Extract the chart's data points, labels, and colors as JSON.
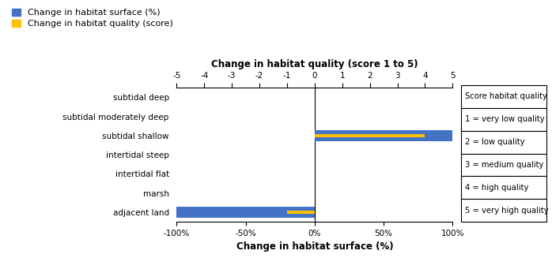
{
  "categories": [
    "subtidal deep",
    "subtidal moderately deep",
    "subtidal shallow",
    "intertidal steep",
    "intertidal flat",
    "marsh",
    "adjacent land"
  ],
  "surface_values": [
    0,
    0,
    100,
    0,
    0,
    0,
    -100
  ],
  "quality_values": [
    0,
    0,
    4,
    0,
    0,
    0,
    -1
  ],
  "bar_color_surface": "#4472C4",
  "bar_color_quality": "#FFC000",
  "surface_xlim": [
    -100,
    100
  ],
  "quality_xlim": [
    -5,
    5
  ],
  "bottom_xlabel": "Change in habitat surface (%)",
  "top_xlabel": "Change in habitat quality (score 1 to 5)",
  "surface_xticks": [
    -100,
    -50,
    0,
    50,
    100
  ],
  "surface_xticklabels": [
    "-100%",
    "-50%",
    "0%",
    "50%",
    "100%"
  ],
  "quality_xticks": [
    -5,
    -4,
    -3,
    -2,
    -1,
    0,
    1,
    2,
    3,
    4,
    5
  ],
  "quality_xticklabels": [
    "-5",
    "-4",
    "-3",
    "-2",
    "-1",
    "0",
    "1",
    "2",
    "3",
    "4",
    "5"
  ],
  "legend_label_surface": "Change in habitat surface (%)",
  "legend_label_quality": "Change in habitat quality (score)",
  "bar_height": 0.55,
  "score_box_title": "Score habitat quality",
  "score_box_entries": [
    "1 = very low quality",
    "2 = low quality",
    "3 = medium quality",
    "4 = high quality",
    "5 = very high quality"
  ],
  "fig_width": 6.98,
  "fig_height": 3.27
}
